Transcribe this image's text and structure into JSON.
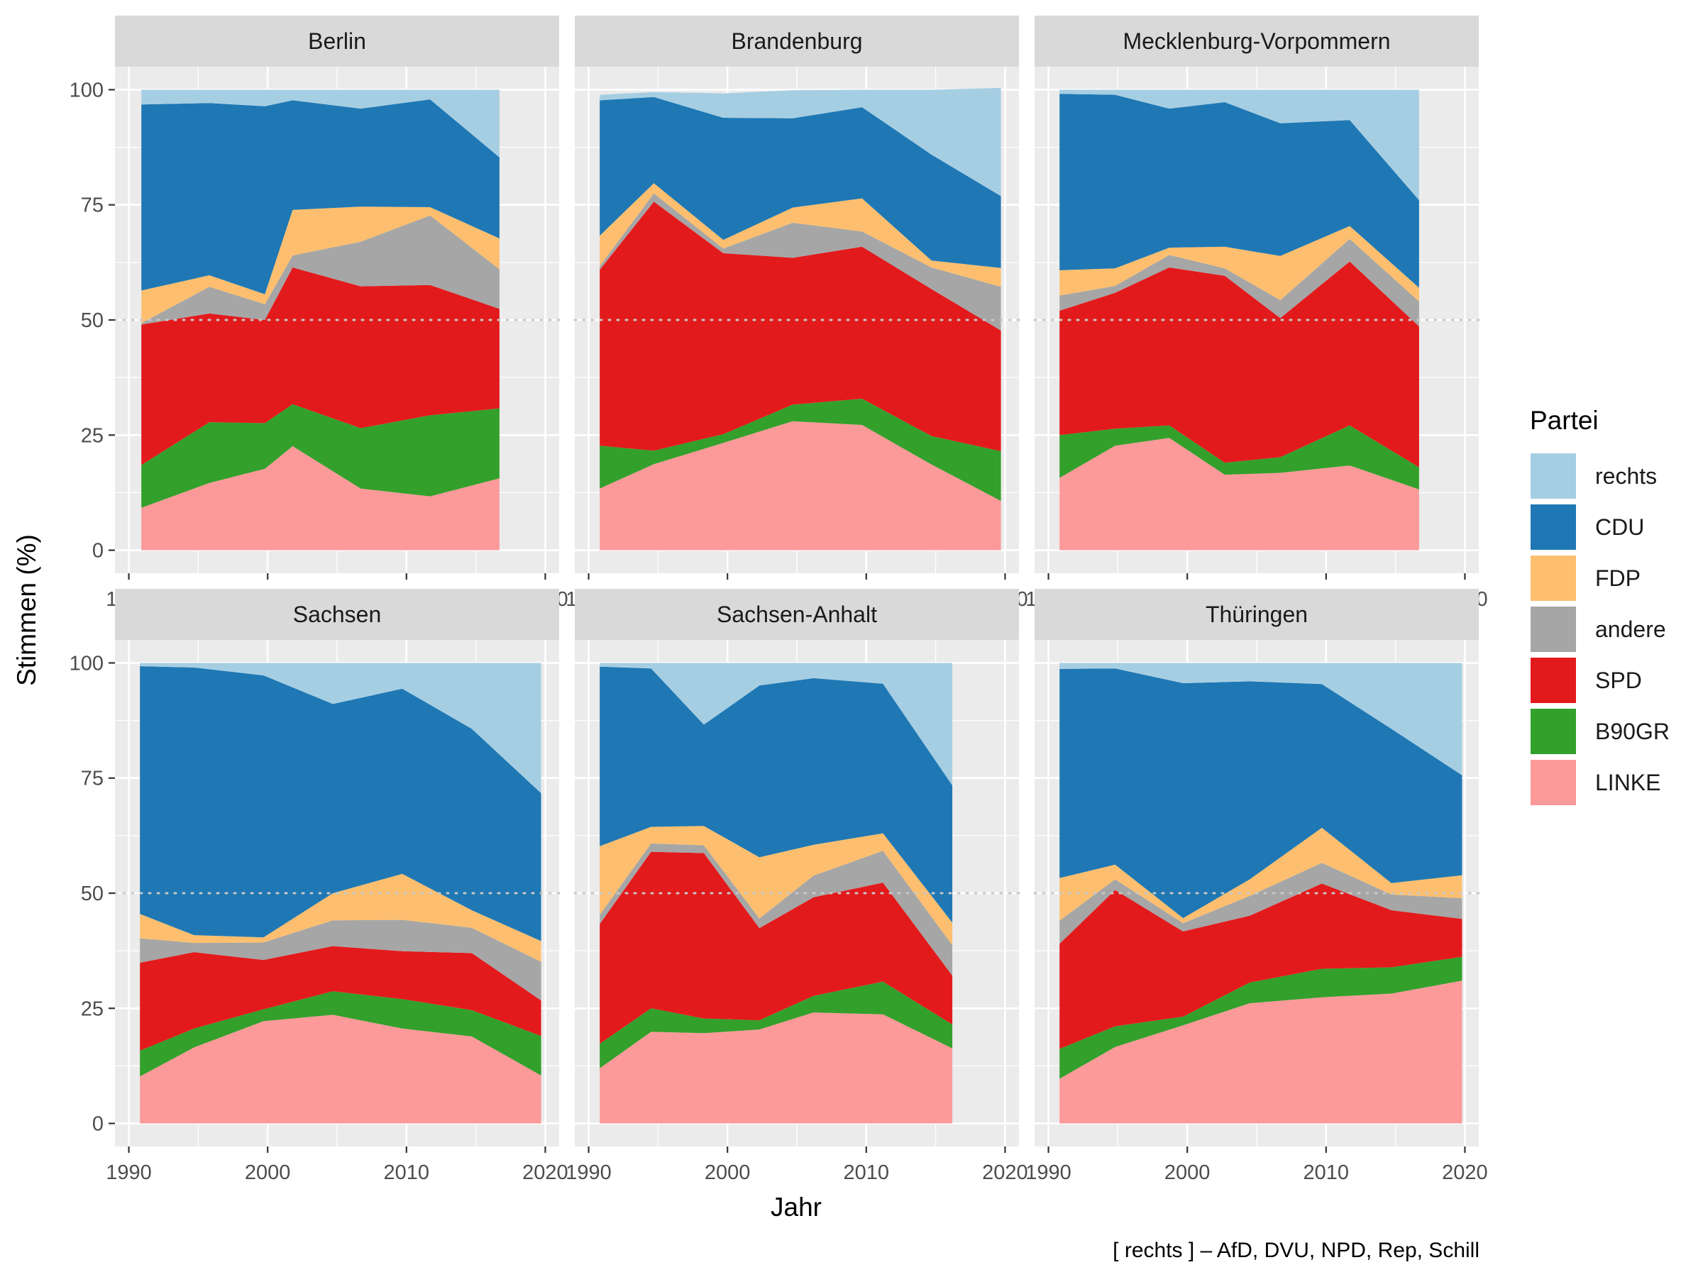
{
  "chart_data": {
    "type": "area",
    "stacked": true,
    "facets": [
      "Berlin",
      "Brandenburg",
      "Mecklenburg-Vorpommern",
      "Sachsen",
      "Sachsen-Anhalt",
      "Thüringen"
    ],
    "xlabel": "Jahr",
    "ylabel": "Stimmen (%)",
    "xlim": [
      1990,
      2020
    ],
    "ylim": [
      0,
      100
    ],
    "x_ticks": [
      1990,
      2000,
      2010,
      2020
    ],
    "y_ticks": [
      0,
      25,
      50,
      75,
      100
    ],
    "reference_line": 50,
    "grid": true,
    "legend": {
      "title": "Partei",
      "position": "right",
      "entries": [
        "rechts",
        "CDU",
        "FDP",
        "andere",
        "SPD",
        "B90GR",
        "LINKE"
      ]
    },
    "caption": "[ rechts ] – AfD, DVU, NPD, Rep, Schill",
    "stack_order": [
      "LINKE",
      "B90GR",
      "SPD",
      "andere",
      "FDP",
      "CDU",
      "rechts"
    ],
    "colors": {
      "rechts": "#a6cee3",
      "CDU": "#1f78b4",
      "FDP": "#fdbf6f",
      "andere": "#a6a6a6",
      "SPD": "#e31a1c",
      "B90GR": "#33a02c",
      "LINKE": "#fb9a99"
    },
    "panels": [
      {
        "name": "Berlin",
        "x": [
          1990.9,
          1995.8,
          1999.8,
          2001.8,
          2006.7,
          2011.7,
          2016.7
        ],
        "series": {
          "LINKE": [
            9.2,
            14.6,
            17.7,
            22.6,
            13.4,
            11.7,
            15.6
          ],
          "B90GR": [
            9.3,
            13.2,
            9.9,
            9.1,
            13.1,
            17.6,
            15.2
          ],
          "SPD": [
            30.5,
            23.6,
            22.4,
            29.7,
            30.8,
            28.3,
            21.6
          ],
          "andere": [
            0.3,
            5.8,
            3.4,
            2.6,
            9.7,
            15.1,
            8.6
          ],
          "FDP": [
            7.1,
            2.5,
            2.2,
            9.9,
            7.6,
            1.8,
            6.7
          ],
          "CDU": [
            40.4,
            37.4,
            40.8,
            23.8,
            21.3,
            23.4,
            17.6
          ],
          "rechts": [
            3.2,
            2.9,
            3.6,
            2.3,
            4.1,
            2.1,
            14.7
          ]
        }
      },
      {
        "name": "Brandenburg",
        "x": [
          1990.8,
          1994.7,
          1999.7,
          2004.7,
          2009.7,
          2014.7,
          2019.7
        ],
        "series": {
          "LINKE": [
            13.4,
            18.7,
            23.3,
            28.0,
            27.2,
            18.6,
            10.7
          ],
          "B90GR": [
            9.3,
            2.9,
            1.9,
            3.6,
            5.7,
            6.2,
            10.8
          ],
          "SPD": [
            38.2,
            54.1,
            39.3,
            31.9,
            33.0,
            31.9,
            26.2
          ],
          "andere": [
            0.8,
            1.8,
            1.0,
            7.6,
            3.3,
            4.7,
            9.5
          ],
          "FDP": [
            6.6,
            2.2,
            1.9,
            3.3,
            7.2,
            1.5,
            4.1
          ],
          "CDU": [
            29.4,
            18.7,
            26.5,
            19.4,
            19.8,
            23.0,
            15.6
          ],
          "rechts": [
            1.2,
            1.1,
            5.3,
            6.1,
            3.8,
            14.1,
            23.5
          ]
        }
      },
      {
        "name": "Mecklenburg-Vorpommern",
        "x": [
          1990.8,
          1994.8,
          1998.7,
          2002.7,
          2006.7,
          2011.7,
          2016.7
        ],
        "series": {
          "LINKE": [
            15.7,
            22.7,
            24.4,
            16.4,
            16.8,
            18.4,
            13.2
          ],
          "B90GR": [
            9.3,
            3.7,
            2.7,
            2.6,
            3.4,
            8.7,
            4.8
          ],
          "SPD": [
            27.0,
            29.5,
            34.3,
            40.6,
            30.2,
            35.6,
            30.6
          ],
          "andere": [
            3.3,
            1.5,
            2.7,
            1.6,
            3.9,
            4.9,
            5.4
          ],
          "FDP": [
            5.5,
            3.8,
            1.6,
            4.7,
            9.6,
            2.8,
            3.0
          ],
          "CDU": [
            38.3,
            37.7,
            30.2,
            31.4,
            28.8,
            23.0,
            19.0
          ],
          "rechts": [
            0.9,
            1.1,
            4.1,
            2.7,
            7.3,
            6.6,
            24.0
          ]
        }
      },
      {
        "name": "Sachsen",
        "x": [
          1990.8,
          1994.7,
          1999.7,
          2004.7,
          2009.7,
          2014.7,
          2019.7
        ],
        "series": {
          "LINKE": [
            10.2,
            16.5,
            22.2,
            23.6,
            20.6,
            18.9,
            10.4
          ],
          "B90GR": [
            5.6,
            4.1,
            2.6,
            5.1,
            6.4,
            5.7,
            8.6
          ],
          "SPD": [
            19.1,
            16.6,
            10.7,
            9.8,
            10.4,
            12.4,
            7.7
          ],
          "andere": [
            5.3,
            2.0,
            3.8,
            5.6,
            6.8,
            5.5,
            8.4
          ],
          "FDP": [
            5.3,
            1.7,
            1.1,
            5.9,
            10.0,
            3.8,
            4.5
          ],
          "CDU": [
            53.8,
            58.1,
            56.9,
            41.1,
            40.2,
            39.4,
            32.1
          ],
          "rechts": [
            0.7,
            1.0,
            2.7,
            8.9,
            5.6,
            14.3,
            28.3
          ]
        }
      },
      {
        "name": "Sachsen-Anhalt",
        "x": [
          1990.8,
          1994.5,
          1998.3,
          2002.3,
          2006.2,
          2011.2,
          2016.2
        ],
        "series": {
          "LINKE": [
            12.0,
            19.9,
            19.6,
            20.4,
            24.1,
            23.7,
            16.3
          ],
          "B90GR": [
            5.3,
            5.1,
            3.2,
            2.0,
            3.6,
            7.1,
            5.2
          ],
          "SPD": [
            26.0,
            34.0,
            35.9,
            20.0,
            21.4,
            21.5,
            10.6
          ],
          "andere": [
            2.0,
            1.8,
            1.7,
            2.1,
            4.7,
            6.9,
            6.6
          ],
          "FDP": [
            14.9,
            3.6,
            4.2,
            13.3,
            6.7,
            3.8,
            4.9
          ],
          "CDU": [
            39.0,
            34.4,
            22.0,
            37.3,
            36.2,
            32.5,
            29.8
          ],
          "rechts": [
            0.8,
            1.2,
            13.4,
            4.9,
            3.3,
            4.5,
            26.6
          ]
        }
      },
      {
        "name": "Thüringen",
        "x": [
          1990.8,
          1994.8,
          1999.7,
          2004.5,
          2009.7,
          2014.7,
          2019.8
        ],
        "series": {
          "LINKE": [
            9.7,
            16.6,
            21.3,
            26.1,
            27.4,
            28.2,
            31.0
          ],
          "B90GR": [
            6.5,
            4.5,
            1.9,
            4.5,
            6.2,
            5.7,
            5.2
          ],
          "SPD": [
            22.8,
            29.6,
            18.5,
            14.5,
            18.5,
            12.4,
            8.2
          ],
          "andere": [
            5.0,
            2.3,
            1.8,
            4.3,
            4.5,
            3.4,
            4.5
          ],
          "FDP": [
            9.3,
            3.2,
            1.1,
            3.6,
            7.6,
            2.5,
            5.0
          ],
          "CDU": [
            45.4,
            42.6,
            51.0,
            43.0,
            31.2,
            33.5,
            21.7
          ],
          "rechts": [
            1.3,
            1.2,
            4.4,
            4.0,
            4.6,
            14.3,
            24.4
          ]
        }
      }
    ]
  }
}
